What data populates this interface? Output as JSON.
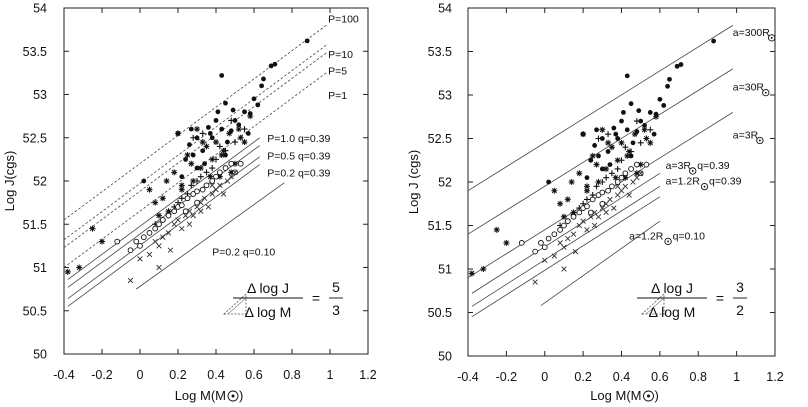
{
  "chart_data": [
    {
      "type": "scatter",
      "panel": "left",
      "xlabel": "Log M(M",
      "xlabel_symbol": "sun-symbol",
      "xlabel_close": ")",
      "ylabel": "Log J(cgs)",
      "xlim": [
        -0.4,
        1.2
      ],
      "ylim": [
        50,
        54
      ],
      "xticks": [
        -0.4,
        -0.2,
        0,
        0.2,
        0.4,
        0.6,
        0.8,
        1,
        1.2
      ],
      "xtick_labels": [
        "-0.4",
        "-0.2",
        "0",
        "0.2",
        "0.4",
        "0.6",
        "0.8",
        "1",
        "1.2"
      ],
      "yticks": [
        50,
        50.5,
        51,
        51.5,
        52,
        52.5,
        53,
        53.5,
        54
      ],
      "ytick_labels": [
        "50",
        "50.5",
        "51",
        "51.5",
        "52",
        "52.5",
        "53",
        "53.5",
        "54"
      ],
      "lines": [
        {
          "label": "P=100",
          "style": "dashed",
          "x": [
            -0.4,
            0.98
          ],
          "y": [
            51.55,
            53.8
          ],
          "label_at": [
            0.99,
            53.83
          ]
        },
        {
          "label": "P=10",
          "style": "dashed",
          "x": [
            -0.4,
            0.98
          ],
          "y": [
            51.32,
            53.57
          ],
          "label_at": [
            0.99,
            53.42
          ]
        },
        {
          "label": "P=5",
          "style": "dashed",
          "x": [
            -0.4,
            0.98
          ],
          "y": [
            51.23,
            53.48
          ],
          "label_at": [
            0.99,
            53.23
          ]
        },
        {
          "label": "P=1",
          "style": "dashed",
          "x": [
            -0.4,
            0.98
          ],
          "y": [
            51.0,
            53.25
          ],
          "label_at": [
            0.99,
            52.95
          ]
        },
        {
          "label": "P=1.0 q=0.39",
          "style": "solid",
          "x": [
            -0.38,
            0.63
          ],
          "y": [
            50.86,
            52.5
          ],
          "label_at": [
            0.67,
            52.45
          ]
        },
        {
          "label": "P=0.5 q=0.39",
          "style": "solid",
          "x": [
            -0.38,
            0.63
          ],
          "y": [
            50.77,
            52.41
          ],
          "label_at": [
            0.67,
            52.25
          ]
        },
        {
          "label": "P=0.2 q=0.39",
          "style": "solid",
          "x": [
            -0.38,
            0.63
          ],
          "y": [
            50.64,
            52.28
          ],
          "label_at": [
            0.67,
            52.05
          ]
        },
        {
          "label": "",
          "style": "solid",
          "x": [
            -0.38,
            0.63
          ],
          "y": [
            50.55,
            52.19
          ],
          "label_at": null
        },
        {
          "label": "P=0.2 q=0.10",
          "style": "solid",
          "x": [
            -0.02,
            0.76
          ],
          "y": [
            50.75,
            51.98
          ],
          "label_at": [
            0.38,
            51.14
          ]
        }
      ],
      "series": [
        {
          "name": "filled circles",
          "marker": "filled-circle",
          "x": [
            0.88,
            0.71,
            0.69,
            0.65,
            0.64,
            0.6,
            0.58,
            0.55,
            0.52,
            0.5,
            0.48,
            0.46,
            0.45,
            0.43,
            0.4,
            0.38,
            0.36,
            0.33,
            0.3,
            0.28,
            0.26,
            0.24,
            0.22,
            0.2,
            0.43,
            0.49,
            0.37,
            0.02,
            0.34,
            0.45,
            0.41,
            0.3,
            0.27,
            0.57,
            0.62
          ],
          "y": [
            53.62,
            53.35,
            53.33,
            53.18,
            53.1,
            52.95,
            52.78,
            52.8,
            52.65,
            52.7,
            52.58,
            52.45,
            52.9,
            52.6,
            52.7,
            52.5,
            52.62,
            52.35,
            52.5,
            52.3,
            52.42,
            52.25,
            52.05,
            52.55,
            53.22,
            52.82,
            52.55,
            52.0,
            52.2,
            52.3,
            52.8,
            52.15,
            52.6,
            52.55,
            52.88
          ]
        },
        {
          "name": "stars",
          "marker": "star",
          "x": [
            -0.38,
            -0.32,
            -0.25,
            -0.2,
            0.05,
            0.08,
            0.12,
            0.15,
            0.18,
            0.2,
            0.22,
            0.25,
            0.28,
            0.3,
            0.32,
            0.35,
            0.38,
            0.4,
            0.42,
            0.44,
            0.47,
            0.5,
            0.52,
            0.55,
            0.58,
            0.1,
            0.14,
            0.22,
            0.27,
            0.33,
            0.37,
            0.43,
            0.48,
            0.53
          ],
          "y": [
            50.95,
            51.0,
            51.45,
            51.3,
            51.9,
            51.75,
            51.8,
            51.65,
            52.1,
            52.55,
            51.95,
            52.3,
            52.0,
            52.6,
            52.15,
            52.4,
            52.25,
            52.45,
            52.05,
            52.35,
            52.55,
            52.2,
            52.6,
            52.45,
            52.75,
            51.6,
            52.0,
            51.9,
            52.2,
            52.45,
            52.05,
            52.3,
            52.1,
            52.5
          ]
        },
        {
          "name": "plus",
          "marker": "plus",
          "x": [
            0.08,
            0.12,
            0.15,
            0.18,
            0.2,
            0.22,
            0.25,
            0.27,
            0.3,
            0.32,
            0.35,
            0.38,
            0.4,
            0.45,
            0.5,
            0.55,
            0.28,
            0.33,
            0.42,
            0.48
          ],
          "y": [
            51.5,
            51.55,
            51.62,
            51.7,
            51.75,
            51.8,
            51.85,
            51.95,
            52.0,
            52.05,
            52.1,
            52.15,
            52.25,
            52.35,
            52.45,
            52.6,
            52.5,
            52.55,
            52.4,
            52.7
          ]
        },
        {
          "name": "open circles",
          "marker": "open-circle",
          "x": [
            -0.12,
            -0.05,
            -0.02,
            0.0,
            0.02,
            0.05,
            0.08,
            0.1,
            0.12,
            0.15,
            0.18,
            0.2,
            0.22,
            0.25,
            0.28,
            0.3,
            0.33,
            0.35,
            0.38,
            0.4,
            0.42,
            0.45,
            0.48,
            0.5,
            0.53,
            0.3,
            0.24
          ],
          "y": [
            51.3,
            51.2,
            51.3,
            51.25,
            51.35,
            51.4,
            51.45,
            51.5,
            51.55,
            51.6,
            51.65,
            51.7,
            51.72,
            51.8,
            51.85,
            51.88,
            51.9,
            51.95,
            52.0,
            52.05,
            52.1,
            52.15,
            52.2,
            52.1,
            52.2,
            51.75,
            51.65
          ]
        },
        {
          "name": "crosses",
          "marker": "x",
          "x": [
            -0.05,
            0.0,
            0.05,
            0.08,
            0.1,
            0.12,
            0.15,
            0.18,
            0.2,
            0.22,
            0.24,
            0.26,
            0.28,
            0.3,
            0.32,
            0.34,
            0.36,
            0.38,
            0.4,
            0.42,
            0.44,
            0.46,
            0.48,
            0.5,
            0.1,
            0.16,
            0.26,
            0.32,
            0.38
          ],
          "y": [
            50.85,
            51.1,
            51.15,
            51.3,
            51.25,
            51.35,
            51.4,
            51.5,
            51.55,
            51.45,
            51.6,
            51.65,
            51.6,
            51.7,
            51.75,
            51.8,
            51.7,
            51.85,
            51.9,
            51.95,
            51.85,
            52.0,
            52.05,
            52.1,
            51.0,
            51.2,
            51.5,
            51.65,
            51.95
          ]
        }
      ],
      "annotation": {
        "numerator": "Δ log J",
        "denominator": "Δ log M",
        "equals": "=",
        "frac_num": "5",
        "frac_den": "3",
        "icon": "slope-triangle-icon"
      }
    },
    {
      "type": "scatter",
      "panel": "right",
      "xlabel": "Log M(M",
      "xlabel_symbol": "sun-symbol",
      "xlabel_close": ")",
      "ylabel": "Log J (cgs)",
      "xlim": [
        -0.4,
        1.2
      ],
      "ylim": [
        50,
        54
      ],
      "xticks": [
        -0.4,
        -0.2,
        0,
        0.2,
        0.4,
        0.6,
        0.8,
        1,
        1.2
      ],
      "xtick_labels": [
        "-0.4",
        "-0.2",
        "0",
        "0.2",
        "0.4",
        "0.6",
        "0.8",
        "1",
        "1.2"
      ],
      "yticks": [
        50,
        50.5,
        51,
        51.5,
        52,
        52.5,
        53,
        53.5,
        54
      ],
      "ytick_labels": [
        "50",
        "50.5",
        "51",
        "51.5",
        "52",
        "52.5",
        "53",
        "53.5",
        "54"
      ],
      "lines": [
        {
          "label": "a=300R",
          "style": "solid",
          "x": [
            -0.4,
            0.98
          ],
          "y": [
            51.9,
            53.8
          ],
          "label_at": [
            0.98,
            53.68
          ]
        },
        {
          "label": "a=30R",
          "style": "solid",
          "x": [
            -0.4,
            0.98
          ],
          "y": [
            51.4,
            53.3
          ],
          "label_at": [
            0.98,
            53.05
          ]
        },
        {
          "label": "a=3R",
          "style": "solid",
          "x": [
            -0.4,
            0.98
          ],
          "y": [
            50.9,
            52.8
          ],
          "label_at": [
            0.98,
            52.5
          ]
        },
        {
          "label": "a=3R",
          "suffix": "  q=0.39",
          "style": "solid",
          "x": [
            -0.38,
            0.6
          ],
          "y": [
            50.72,
            52.1
          ],
          "label_at": [
            0.63,
            52.15
          ]
        },
        {
          "label": "a=1.2R",
          "suffix": " q=0.39",
          "style": "solid",
          "x": [
            -0.38,
            0.6
          ],
          "y": [
            50.57,
            51.95
          ],
          "label_at": [
            0.63,
            51.97
          ]
        },
        {
          "label": "",
          "style": "solid",
          "x": [
            -0.38,
            0.6
          ],
          "y": [
            50.45,
            51.83
          ],
          "label_at": null
        },
        {
          "label": "a=1.2R",
          "suffix": " q=0.10",
          "style": "solid",
          "x": [
            -0.02,
            0.6
          ],
          "y": [
            50.58,
            51.55
          ],
          "label_at": [
            0.44,
            51.34
          ]
        }
      ],
      "series": [
        {
          "name": "filled circles",
          "marker": "filled-circle",
          "x": [
            0.88,
            0.71,
            0.69,
            0.65,
            0.64,
            0.6,
            0.58,
            0.55,
            0.52,
            0.5,
            0.48,
            0.46,
            0.45,
            0.43,
            0.4,
            0.38,
            0.36,
            0.33,
            0.3,
            0.28,
            0.26,
            0.24,
            0.22,
            0.2,
            0.43,
            0.49,
            0.37,
            0.02,
            0.34,
            0.45,
            0.41,
            0.3,
            0.27,
            0.57,
            0.62
          ],
          "y": [
            53.62,
            53.35,
            53.33,
            53.18,
            53.1,
            52.95,
            52.78,
            52.8,
            52.65,
            52.7,
            52.58,
            52.45,
            52.9,
            52.6,
            52.7,
            52.5,
            52.62,
            52.35,
            52.5,
            52.3,
            52.42,
            52.25,
            52.05,
            52.55,
            53.22,
            52.82,
            52.55,
            52.0,
            52.2,
            52.3,
            52.8,
            52.15,
            52.6,
            52.55,
            52.88
          ]
        },
        {
          "name": "stars",
          "marker": "star",
          "x": [
            -0.38,
            -0.32,
            -0.25,
            -0.2,
            0.05,
            0.08,
            0.12,
            0.15,
            0.18,
            0.2,
            0.22,
            0.25,
            0.28,
            0.3,
            0.32,
            0.35,
            0.38,
            0.4,
            0.42,
            0.44,
            0.47,
            0.5,
            0.52,
            0.55,
            0.58,
            0.1,
            0.14,
            0.22,
            0.27,
            0.33,
            0.37,
            0.43,
            0.48,
            0.53
          ],
          "y": [
            50.95,
            51.0,
            51.45,
            51.3,
            51.9,
            51.75,
            51.8,
            51.65,
            52.1,
            52.55,
            51.95,
            52.3,
            52.0,
            52.6,
            52.15,
            52.4,
            52.25,
            52.45,
            52.05,
            52.35,
            52.55,
            52.2,
            52.6,
            52.45,
            52.75,
            51.6,
            52.0,
            51.9,
            52.2,
            52.45,
            52.05,
            52.3,
            52.1,
            52.5
          ]
        },
        {
          "name": "plus",
          "marker": "plus",
          "x": [
            0.08,
            0.12,
            0.15,
            0.18,
            0.2,
            0.22,
            0.25,
            0.27,
            0.3,
            0.32,
            0.35,
            0.38,
            0.4,
            0.45,
            0.5,
            0.55,
            0.28,
            0.33,
            0.42,
            0.48
          ],
          "y": [
            51.5,
            51.55,
            51.62,
            51.7,
            51.75,
            51.8,
            51.85,
            51.95,
            52.0,
            52.05,
            52.1,
            52.15,
            52.25,
            52.35,
            52.45,
            52.6,
            52.5,
            52.55,
            52.4,
            52.7
          ]
        },
        {
          "name": "open circles",
          "marker": "open-circle",
          "x": [
            -0.12,
            -0.05,
            -0.02,
            0.0,
            0.02,
            0.05,
            0.08,
            0.1,
            0.12,
            0.15,
            0.18,
            0.2,
            0.22,
            0.25,
            0.28,
            0.3,
            0.33,
            0.35,
            0.38,
            0.4,
            0.42,
            0.45,
            0.48,
            0.5,
            0.53,
            0.3,
            0.24
          ],
          "y": [
            51.3,
            51.2,
            51.3,
            51.25,
            51.35,
            51.4,
            51.45,
            51.5,
            51.55,
            51.6,
            51.65,
            51.7,
            51.72,
            51.8,
            51.85,
            51.88,
            51.9,
            51.95,
            52.0,
            52.05,
            52.1,
            52.15,
            52.2,
            52.1,
            52.2,
            51.75,
            51.65
          ]
        },
        {
          "name": "crosses",
          "marker": "x",
          "x": [
            -0.05,
            0.0,
            0.05,
            0.08,
            0.1,
            0.12,
            0.15,
            0.18,
            0.2,
            0.22,
            0.24,
            0.26,
            0.28,
            0.3,
            0.32,
            0.34,
            0.36,
            0.38,
            0.4,
            0.42,
            0.44,
            0.46,
            0.48,
            0.5,
            0.1,
            0.16,
            0.26,
            0.32,
            0.38
          ],
          "y": [
            50.85,
            51.1,
            51.15,
            51.3,
            51.25,
            51.35,
            51.4,
            51.5,
            51.55,
            51.45,
            51.6,
            51.65,
            51.6,
            51.7,
            51.75,
            51.8,
            51.7,
            51.85,
            51.9,
            51.95,
            51.85,
            52.0,
            52.05,
            52.1,
            51.0,
            51.2,
            51.5,
            51.65,
            51.95
          ]
        }
      ],
      "annotation": {
        "numerator": "Δ log J",
        "denominator": "Δ log M",
        "equals": "=",
        "frac_num": "3",
        "frac_den": "2",
        "icon": "slope-triangle-icon"
      }
    }
  ]
}
